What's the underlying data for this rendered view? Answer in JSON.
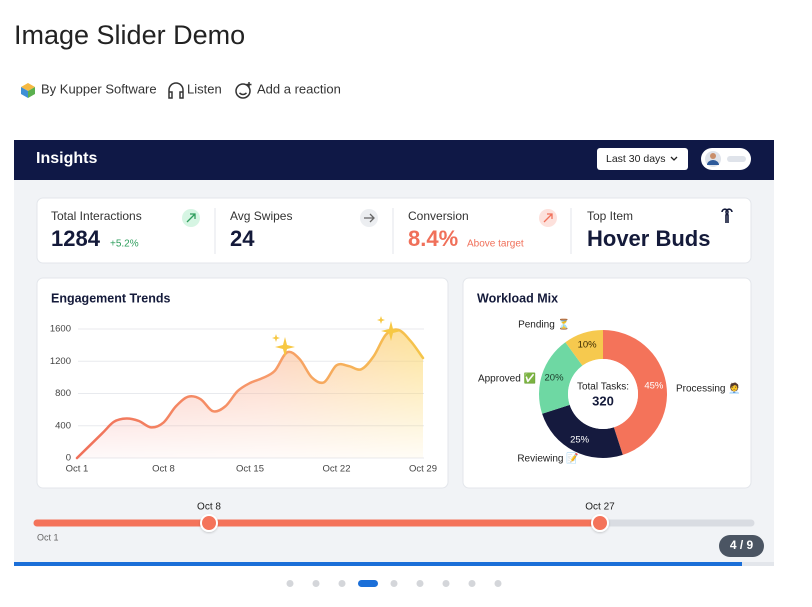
{
  "title": "Image Slider Demo",
  "meta": {
    "author": "By Kupper Software",
    "listen": "Listen",
    "reaction": "Add a reaction"
  },
  "dashboard": {
    "header": {
      "title": "Insights",
      "range": "Last 30 days"
    },
    "kpis": [
      {
        "label": "Total Interactions",
        "value": 1284,
        "note": "+5.2%"
      },
      {
        "label": "Avg Swipes",
        "value": 24
      },
      {
        "label": "Conversion",
        "value": "8.4%",
        "note": "Above target"
      },
      {
        "label": "Top Item",
        "value": "Hover Buds"
      }
    ],
    "engagement": {
      "type": "line",
      "title": "Engagement Trends",
      "x": [
        1,
        3,
        4,
        5,
        6,
        7,
        8,
        9,
        10,
        11,
        12,
        13,
        14,
        15,
        16,
        17,
        18,
        19,
        20,
        21,
        22,
        23,
        24,
        25,
        26,
        27,
        28,
        29
      ],
      "values": [
        0,
        300,
        450,
        490,
        460,
        380,
        440,
        640,
        760,
        730,
        580,
        640,
        830,
        930,
        990,
        1080,
        1310,
        1230,
        1000,
        940,
        1150,
        1140,
        1100,
        1260,
        1530,
        1590,
        1450,
        1240
      ],
      "xlim": [
        1,
        29
      ],
      "xticks": [
        {
          "value": 1,
          "label": "Oct 1"
        },
        {
          "value": 8,
          "label": "Oct 8"
        },
        {
          "value": 15,
          "label": "Oct 15"
        },
        {
          "value": 22,
          "label": "Oct 22"
        },
        {
          "value": 29,
          "label": "Oct 29"
        }
      ],
      "ylim": [
        0,
        1600
      ],
      "yticks": [
        0,
        400,
        800,
        1200,
        1600
      ],
      "grid": true
    },
    "workload": {
      "type": "pie",
      "title": "Workload Mix",
      "center_label": "Total Tasks:",
      "center_value": 320,
      "categories": [
        "Processing 🧑‍💼",
        "Reviewing 📝",
        "Approved ✅",
        "Pending ⏳"
      ],
      "values": [
        45,
        25,
        20,
        10
      ],
      "value_labels": [
        "45%",
        "25%",
        "20%",
        "10%"
      ],
      "colors": [
        "#f4735a",
        "#151a3e",
        "#6ed8a3",
        "#f6c94e"
      ]
    },
    "slider": {
      "min_label": "Oct 1",
      "start_label": "Oct 8",
      "end_label": "Oct 27"
    },
    "pager": {
      "label": "4 / 9",
      "dots": 9,
      "active": 4
    }
  }
}
